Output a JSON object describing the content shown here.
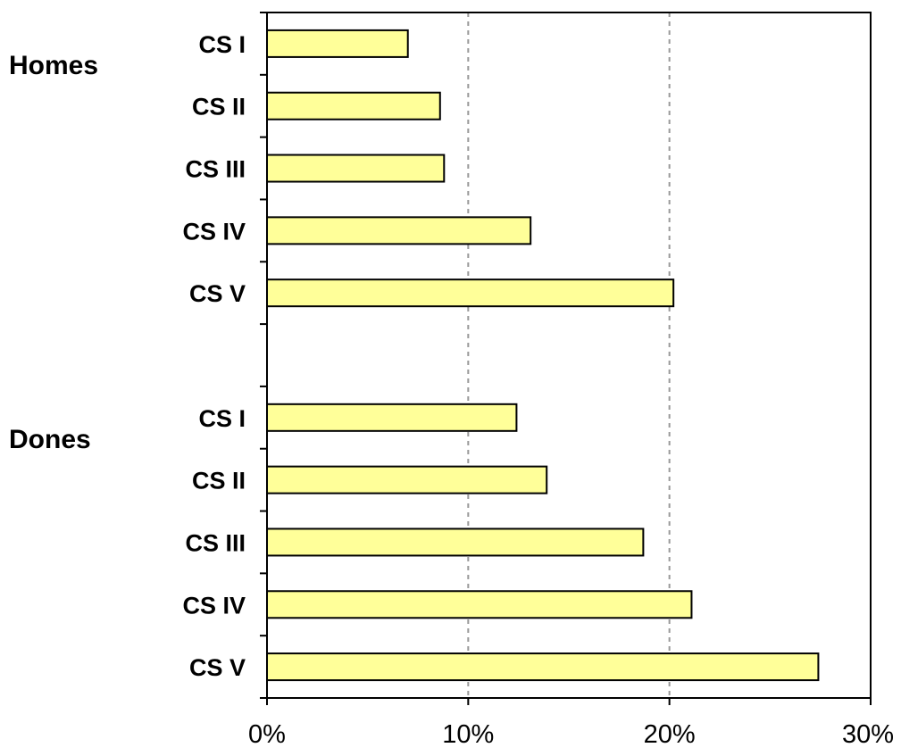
{
  "chart_data": {
    "type": "bar",
    "orientation": "horizontal",
    "groups": [
      {
        "name": "Homes",
        "categories": [
          "CS I",
          "CS II",
          "CS III",
          "CS IV",
          "CS V"
        ],
        "values": [
          7.0,
          8.6,
          8.8,
          13.1,
          20.2
        ]
      },
      {
        "name": "Dones",
        "categories": [
          "CS I",
          "CS II",
          "CS III",
          "CS IV",
          "CS V"
        ],
        "values": [
          12.4,
          13.9,
          18.7,
          21.1,
          27.4
        ]
      }
    ],
    "xlim": [
      0,
      30
    ],
    "xticks": [
      "0%",
      "10%",
      "20%",
      "30%"
    ],
    "grid": "vertical dashed",
    "bar_color": "#ffff99",
    "bar_edge_color": "#000000"
  }
}
